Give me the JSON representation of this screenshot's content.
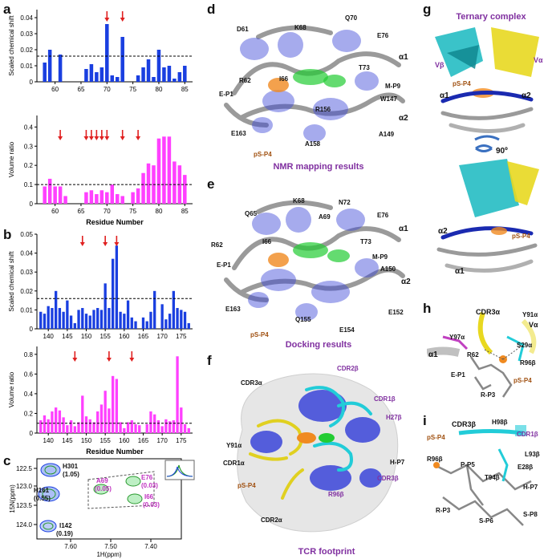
{
  "panels": {
    "a": "a",
    "b": "b",
    "c": "c",
    "d": "d",
    "e": "e",
    "f": "f",
    "g": "g",
    "h": "h",
    "i": "i"
  },
  "a_top": {
    "type": "bar",
    "ylabel": "Scaled chemical shift",
    "yticks": [
      "0",
      "0.01",
      "0.02",
      "0.03",
      "0.04"
    ],
    "xticks": [
      "60",
      "65",
      "70",
      "75",
      "80",
      "85"
    ],
    "ylim": [
      0,
      0.045
    ],
    "threshold": 0.016,
    "color": "#1a3fe0",
    "bars": [
      [
        58,
        0.012
      ],
      [
        59,
        0.02
      ],
      [
        61,
        0.017
      ],
      [
        66,
        0.008
      ],
      [
        67,
        0.011
      ],
      [
        68,
        0.006
      ],
      [
        69,
        0.009
      ],
      [
        70,
        0.036
      ],
      [
        71,
        0.004
      ],
      [
        72,
        0.003
      ],
      [
        73,
        0.028
      ],
      [
        74,
        0.0
      ],
      [
        76,
        0.004
      ],
      [
        77,
        0.009
      ],
      [
        78,
        0.014
      ],
      [
        79,
        0.003
      ],
      [
        80,
        0.02
      ],
      [
        81,
        0.009
      ],
      [
        82,
        0.01
      ],
      [
        83,
        0.002
      ],
      [
        84,
        0.006
      ],
      [
        85,
        0.01
      ]
    ],
    "arrows": [
      70,
      73
    ]
  },
  "a_bot": {
    "type": "bar",
    "ylabel": "Volume ratio",
    "yticks": [
      "0",
      "0.1",
      "0.2",
      "0.3",
      "0.4"
    ],
    "xticks": [
      "60",
      "65",
      "70",
      "75",
      "80",
      "85"
    ],
    "xlabel": "Residue Number",
    "ylim": [
      0,
      0.46
    ],
    "threshold": 0.1,
    "color": "#ff40ff",
    "bars": [
      [
        58,
        0.09
      ],
      [
        59,
        0.13
      ],
      [
        60,
        0.09
      ],
      [
        61,
        0.09
      ],
      [
        62,
        0.04
      ],
      [
        66,
        0.06
      ],
      [
        67,
        0.07
      ],
      [
        68,
        0.05
      ],
      [
        69,
        0.07
      ],
      [
        70,
        0.06
      ],
      [
        71,
        0.1
      ],
      [
        72,
        0.05
      ],
      [
        73,
        0.04
      ],
      [
        75,
        0.06
      ],
      [
        76,
        0.08
      ],
      [
        77,
        0.16
      ],
      [
        78,
        0.21
      ],
      [
        79,
        0.2
      ],
      [
        80,
        0.34
      ],
      [
        81,
        0.35
      ],
      [
        82,
        0.35
      ],
      [
        83,
        0.22
      ],
      [
        84,
        0.2
      ],
      [
        85,
        0.15
      ]
    ],
    "arrows": [
      61,
      66,
      67,
      68,
      69,
      70,
      73,
      76
    ]
  },
  "b_top": {
    "type": "bar",
    "ylabel": "Scaled chemical shift",
    "yticks": [
      "0",
      "0.01",
      "0.02",
      "0.03",
      "0.04",
      "0.05"
    ],
    "xticks": [
      "140",
      "145",
      "150",
      "155",
      "160",
      "165",
      "170",
      "175"
    ],
    "ylim": [
      0,
      0.05
    ],
    "threshold": 0.016,
    "color": "#1a3fe0",
    "bars": [
      [
        138,
        0.009
      ],
      [
        139,
        0.008
      ],
      [
        140,
        0.012
      ],
      [
        141,
        0.011
      ],
      [
        142,
        0.02
      ],
      [
        143,
        0.011
      ],
      [
        144,
        0.009
      ],
      [
        145,
        0.015
      ],
      [
        146,
        0.007
      ],
      [
        147,
        0.003
      ],
      [
        148,
        0.01
      ],
      [
        149,
        0.011
      ],
      [
        150,
        0.008
      ],
      [
        151,
        0.007
      ],
      [
        152,
        0.01
      ],
      [
        153,
        0.011
      ],
      [
        154,
        0.01
      ],
      [
        155,
        0.024
      ],
      [
        156,
        0.011
      ],
      [
        157,
        0.037
      ],
      [
        158,
        0.044
      ],
      [
        159,
        0.009
      ],
      [
        160,
        0.008
      ],
      [
        161,
        0.015
      ],
      [
        162,
        0.006
      ],
      [
        163,
        0.004
      ],
      [
        165,
        0.006
      ],
      [
        166,
        0.004
      ],
      [
        167,
        0.009
      ],
      [
        168,
        0.02
      ],
      [
        170,
        0.013
      ],
      [
        171,
        0.005
      ],
      [
        172,
        0.008
      ],
      [
        173,
        0.02
      ],
      [
        174,
        0.011
      ],
      [
        175,
        0.01
      ],
      [
        176,
        0.009
      ],
      [
        177,
        0.003
      ]
    ],
    "arrows": [
      149,
      155,
      158
    ]
  },
  "b_bot": {
    "type": "bar",
    "ylabel": "Volume ratio",
    "yticks": [
      "0",
      "0.2",
      "0.4",
      "0.6",
      "0.8"
    ],
    "xticks": [
      "140",
      "145",
      "150",
      "155",
      "160",
      "165",
      "170",
      "175"
    ],
    "xlabel": "Residue Number",
    "ylim": [
      0,
      0.88
    ],
    "threshold": 0.1,
    "color": "#ff40ff",
    "bars": [
      [
        138,
        0.13
      ],
      [
        139,
        0.18
      ],
      [
        140,
        0.14
      ],
      [
        141,
        0.22
      ],
      [
        142,
        0.26
      ],
      [
        143,
        0.23
      ],
      [
        144,
        0.16
      ],
      [
        145,
        0.08
      ],
      [
        146,
        0.13
      ],
      [
        147,
        0.07
      ],
      [
        148,
        0.11
      ],
      [
        149,
        0.38
      ],
      [
        150,
        0.17
      ],
      [
        151,
        0.14
      ],
      [
        152,
        0.11
      ],
      [
        153,
        0.22
      ],
      [
        154,
        0.29
      ],
      [
        155,
        0.43
      ],
      [
        156,
        0.25
      ],
      [
        157,
        0.58
      ],
      [
        158,
        0.55
      ],
      [
        159,
        0.11
      ],
      [
        160,
        0.05
      ],
      [
        161,
        0.11
      ],
      [
        162,
        0.13
      ],
      [
        163,
        0.09
      ],
      [
        164,
        0.08
      ],
      [
        166,
        0.09
      ],
      [
        167,
        0.22
      ],
      [
        168,
        0.19
      ],
      [
        169,
        0.13
      ],
      [
        170,
        0.07
      ],
      [
        171,
        0.14
      ],
      [
        172,
        0.12
      ],
      [
        173,
        0.13
      ],
      [
        174,
        0.78
      ],
      [
        175,
        0.26
      ],
      [
        176,
        0.09
      ],
      [
        177,
        0.05
      ]
    ],
    "arrows": [
      147,
      156,
      162
    ]
  },
  "c": {
    "ylabel": "15N(ppm)",
    "xlabel": "1H(ppm)",
    "yticks": [
      "122.5",
      "123.0",
      "123.5",
      "124.0"
    ],
    "xticks": [
      "7.60",
      "7.50",
      "7.40"
    ],
    "peaks": [
      {
        "name": "H301",
        "val": "(1.05)",
        "color": "#111"
      },
      {
        "name": "H161",
        "val": "(0.55)",
        "color": "#111"
      },
      {
        "name": "A69",
        "val": "(0.05)",
        "color": "#c030c0"
      },
      {
        "name": "E76",
        "val": "(0.03)",
        "color": "#c030c0"
      },
      {
        "name": "I66",
        "val": "(0.03)",
        "color": "#c030c0"
      },
      {
        "name": "I142",
        "val": "(0.19)",
        "color": "#111"
      }
    ]
  },
  "d": {
    "caption": "NMR mapping results",
    "labels": [
      "D61",
      "K68",
      "Q70",
      "E76",
      "α1",
      "T73",
      "I66",
      "R62",
      "M-P9",
      "E-P1",
      "W147",
      "R156",
      "α2",
      "E163",
      "A149",
      "A158",
      "pS-P4"
    ]
  },
  "e": {
    "caption": "Docking results",
    "labels": [
      "K68",
      "N72",
      "Q65",
      "A69",
      "E76",
      "α1",
      "R62",
      "I66",
      "T73",
      "E-P1",
      "M-P9",
      "A150",
      "α2",
      "E163",
      "E152",
      "Q155",
      "E154",
      "pS-P4"
    ]
  },
  "f": {
    "caption": "TCR footprint",
    "labels": [
      "CDR2β",
      "CDR3α",
      "CDR1β",
      "H27β",
      "Y91α",
      "CDR1α",
      "H-P7",
      "CDR3β",
      "pS-P4",
      "R96β",
      "CDR2α"
    ]
  },
  "g": {
    "title": "Ternary complex",
    "labels": [
      "Vβ",
      "Vα",
      "pS-P4",
      "α1",
      "α2",
      "90º",
      "α2",
      "pS-P4",
      "α1"
    ]
  },
  "h": {
    "labels": [
      "CDR3α",
      "Y91α",
      "Vα",
      "Y97α",
      "S29α",
      "α1",
      "R62",
      "R96β",
      "E-P1",
      "pS-P4",
      "R-P3"
    ]
  },
  "i": {
    "labels": [
      "H98β",
      "CDR3β",
      "CDR1β",
      "pS-P4",
      "L93β",
      "R96β",
      "P-P5",
      "E28β",
      "T94β",
      "H-P7",
      "R-P3",
      "S-P6",
      "S-P8"
    ]
  }
}
